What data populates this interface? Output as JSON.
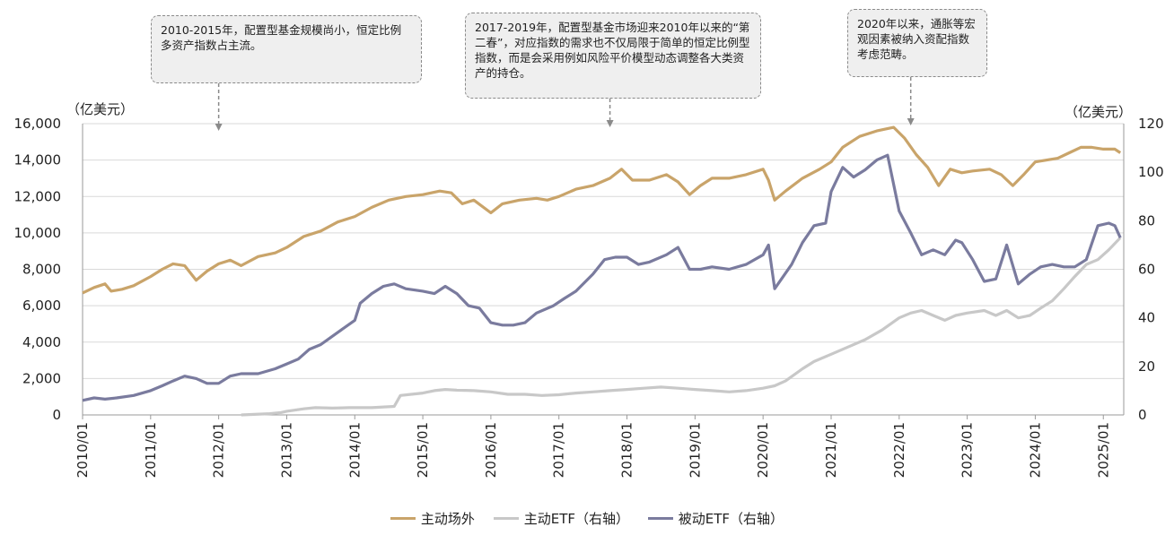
{
  "chart_data": {
    "type": "line",
    "left_axis": {
      "unit": "（亿美元）",
      "ticks": [
        "0",
        "2,000",
        "4,000",
        "6,000",
        "8,000",
        "10,000",
        "12,000",
        "14,000",
        "16,000"
      ],
      "range": [
        0,
        16000
      ]
    },
    "right_axis": {
      "unit": "（亿美元）",
      "ticks": [
        "0",
        "20",
        "40",
        "60",
        "80",
        "100",
        "120"
      ],
      "range": [
        0,
        120
      ]
    },
    "x_ticks": [
      "2010/01",
      "2011/01",
      "2012/01",
      "2013/01",
      "2014/01",
      "2015/01",
      "2016/01",
      "2017/01",
      "2018/01",
      "2019/01",
      "2020/01",
      "2021/01",
      "2022/01",
      "2023/01",
      "2024/01",
      "2025/01"
    ],
    "x_range": [
      2010.0,
      2025.3
    ],
    "grid": "horizontal",
    "legend_position": "bottom",
    "series": [
      {
        "name": "主动场外",
        "axis": "left",
        "color": "#c9a46a",
        "points": [
          [
            2010.0,
            6700
          ],
          [
            2010.17,
            7000
          ],
          [
            2010.33,
            7200
          ],
          [
            2010.42,
            6800
          ],
          [
            2010.58,
            6900
          ],
          [
            2010.75,
            7100
          ],
          [
            2011.0,
            7600
          ],
          [
            2011.17,
            8000
          ],
          [
            2011.33,
            8300
          ],
          [
            2011.5,
            8200
          ],
          [
            2011.67,
            7400
          ],
          [
            2011.83,
            7900
          ],
          [
            2012.0,
            8300
          ],
          [
            2012.17,
            8500
          ],
          [
            2012.33,
            8200
          ],
          [
            2012.58,
            8700
          ],
          [
            2012.83,
            8900
          ],
          [
            2013.0,
            9200
          ],
          [
            2013.25,
            9800
          ],
          [
            2013.5,
            10100
          ],
          [
            2013.75,
            10600
          ],
          [
            2014.0,
            10900
          ],
          [
            2014.25,
            11400
          ],
          [
            2014.5,
            11800
          ],
          [
            2014.75,
            12000
          ],
          [
            2015.0,
            12100
          ],
          [
            2015.25,
            12300
          ],
          [
            2015.42,
            12200
          ],
          [
            2015.58,
            11600
          ],
          [
            2015.75,
            11800
          ],
          [
            2016.0,
            11100
          ],
          [
            2016.17,
            11600
          ],
          [
            2016.42,
            11800
          ],
          [
            2016.67,
            11900
          ],
          [
            2016.83,
            11800
          ],
          [
            2017.0,
            12000
          ],
          [
            2017.25,
            12400
          ],
          [
            2017.5,
            12600
          ],
          [
            2017.75,
            13000
          ],
          [
            2017.92,
            13500
          ],
          [
            2018.08,
            12900
          ],
          [
            2018.33,
            12900
          ],
          [
            2018.58,
            13200
          ],
          [
            2018.75,
            12800
          ],
          [
            2018.92,
            12100
          ],
          [
            2019.08,
            12600
          ],
          [
            2019.25,
            13000
          ],
          [
            2019.5,
            13000
          ],
          [
            2019.75,
            13200
          ],
          [
            2020.0,
            13500
          ],
          [
            2020.08,
            12900
          ],
          [
            2020.17,
            11800
          ],
          [
            2020.33,
            12300
          ],
          [
            2020.58,
            13000
          ],
          [
            2020.83,
            13500
          ],
          [
            2021.0,
            13900
          ],
          [
            2021.17,
            14700
          ],
          [
            2021.42,
            15300
          ],
          [
            2021.67,
            15600
          ],
          [
            2021.92,
            15800
          ],
          [
            2022.08,
            15200
          ],
          [
            2022.25,
            14300
          ],
          [
            2022.42,
            13600
          ],
          [
            2022.58,
            12600
          ],
          [
            2022.75,
            13500
          ],
          [
            2022.92,
            13300
          ],
          [
            2023.08,
            13400
          ],
          [
            2023.33,
            13500
          ],
          [
            2023.5,
            13200
          ],
          [
            2023.67,
            12600
          ],
          [
            2023.83,
            13200
          ],
          [
            2024.0,
            13900
          ],
          [
            2024.17,
            14000
          ],
          [
            2024.33,
            14100
          ],
          [
            2024.5,
            14400
          ],
          [
            2024.67,
            14700
          ],
          [
            2024.83,
            14700
          ],
          [
            2025.0,
            14600
          ],
          [
            2025.17,
            14600
          ],
          [
            2025.25,
            14400
          ]
        ]
      },
      {
        "name": "主动ETF（右轴）",
        "axis": "right",
        "color": "#c8c8c8",
        "points": [
          [
            2012.33,
            0
          ],
          [
            2012.75,
            0.5
          ],
          [
            2012.92,
            1
          ],
          [
            2013.0,
            1.5
          ],
          [
            2013.25,
            2.5
          ],
          [
            2013.42,
            3
          ],
          [
            2013.67,
            2.8
          ],
          [
            2013.92,
            3
          ],
          [
            2014.25,
            3
          ],
          [
            2014.58,
            3.5
          ],
          [
            2014.67,
            8
          ],
          [
            2014.83,
            8.5
          ],
          [
            2015.0,
            9
          ],
          [
            2015.17,
            10
          ],
          [
            2015.33,
            10.5
          ],
          [
            2015.5,
            10.2
          ],
          [
            2015.75,
            10
          ],
          [
            2016.0,
            9.5
          ],
          [
            2016.25,
            8.5
          ],
          [
            2016.5,
            8.5
          ],
          [
            2016.75,
            8
          ],
          [
            2017.0,
            8.3
          ],
          [
            2017.25,
            9
          ],
          [
            2017.5,
            9.5
          ],
          [
            2017.75,
            10
          ],
          [
            2018.0,
            10.5
          ],
          [
            2018.25,
            11
          ],
          [
            2018.5,
            11.5
          ],
          [
            2018.75,
            11
          ],
          [
            2019.0,
            10.5
          ],
          [
            2019.25,
            10
          ],
          [
            2019.5,
            9.5
          ],
          [
            2019.75,
            10
          ],
          [
            2020.0,
            11
          ],
          [
            2020.17,
            12
          ],
          [
            2020.33,
            14
          ],
          [
            2020.58,
            19
          ],
          [
            2020.75,
            22
          ],
          [
            2021.0,
            25
          ],
          [
            2021.25,
            28
          ],
          [
            2021.5,
            31
          ],
          [
            2021.75,
            35
          ],
          [
            2022.0,
            40
          ],
          [
            2022.17,
            42
          ],
          [
            2022.33,
            43
          ],
          [
            2022.5,
            41
          ],
          [
            2022.67,
            39
          ],
          [
            2022.83,
            41
          ],
          [
            2023.0,
            42
          ],
          [
            2023.25,
            43
          ],
          [
            2023.42,
            41
          ],
          [
            2023.58,
            43
          ],
          [
            2023.75,
            40
          ],
          [
            2023.92,
            41
          ],
          [
            2024.08,
            44
          ],
          [
            2024.25,
            47
          ],
          [
            2024.42,
            52
          ],
          [
            2024.58,
            57
          ],
          [
            2024.75,
            62
          ],
          [
            2024.92,
            64
          ],
          [
            2025.08,
            68
          ],
          [
            2025.25,
            73
          ]
        ]
      },
      {
        "name": "被动ETF（右轴）",
        "axis": "right",
        "color": "#7a7b9e",
        "points": [
          [
            2010.0,
            6
          ],
          [
            2010.17,
            7
          ],
          [
            2010.33,
            6.5
          ],
          [
            2010.5,
            7
          ],
          [
            2010.75,
            8
          ],
          [
            2011.0,
            10
          ],
          [
            2011.17,
            12
          ],
          [
            2011.33,
            14
          ],
          [
            2011.5,
            16
          ],
          [
            2011.67,
            15
          ],
          [
            2011.83,
            13
          ],
          [
            2012.0,
            13
          ],
          [
            2012.17,
            16
          ],
          [
            2012.33,
            17
          ],
          [
            2012.58,
            17
          ],
          [
            2012.83,
            19
          ],
          [
            2013.0,
            21
          ],
          [
            2013.17,
            23
          ],
          [
            2013.33,
            27
          ],
          [
            2013.5,
            29
          ],
          [
            2013.75,
            34
          ],
          [
            2014.0,
            39
          ],
          [
            2014.08,
            46
          ],
          [
            2014.25,
            50
          ],
          [
            2014.42,
            53
          ],
          [
            2014.58,
            54
          ],
          [
            2014.75,
            52
          ],
          [
            2015.0,
            51
          ],
          [
            2015.17,
            50
          ],
          [
            2015.33,
            53
          ],
          [
            2015.5,
            50
          ],
          [
            2015.67,
            45
          ],
          [
            2015.83,
            44
          ],
          [
            2016.0,
            38
          ],
          [
            2016.17,
            37
          ],
          [
            2016.33,
            37
          ],
          [
            2016.5,
            38
          ],
          [
            2016.67,
            42
          ],
          [
            2016.92,
            45
          ],
          [
            2017.08,
            48
          ],
          [
            2017.25,
            51
          ],
          [
            2017.5,
            58
          ],
          [
            2017.67,
            64
          ],
          [
            2017.83,
            65
          ],
          [
            2018.0,
            65
          ],
          [
            2018.17,
            62
          ],
          [
            2018.33,
            63
          ],
          [
            2018.58,
            66
          ],
          [
            2018.75,
            69
          ],
          [
            2018.92,
            60
          ],
          [
            2019.08,
            60
          ],
          [
            2019.25,
            61
          ],
          [
            2019.5,
            60
          ],
          [
            2019.75,
            62
          ],
          [
            2020.0,
            66
          ],
          [
            2020.08,
            70
          ],
          [
            2020.17,
            52
          ],
          [
            2020.42,
            62
          ],
          [
            2020.58,
            71
          ],
          [
            2020.75,
            78
          ],
          [
            2020.92,
            79
          ],
          [
            2021.0,
            92
          ],
          [
            2021.17,
            102
          ],
          [
            2021.33,
            98
          ],
          [
            2021.5,
            101
          ],
          [
            2021.67,
            105
          ],
          [
            2021.83,
            107
          ],
          [
            2022.0,
            84
          ],
          [
            2022.17,
            75
          ],
          [
            2022.33,
            66
          ],
          [
            2022.5,
            68
          ],
          [
            2022.67,
            66
          ],
          [
            2022.83,
            72
          ],
          [
            2022.92,
            71
          ],
          [
            2023.08,
            64
          ],
          [
            2023.25,
            55
          ],
          [
            2023.42,
            56
          ],
          [
            2023.58,
            70
          ],
          [
            2023.75,
            54
          ],
          [
            2023.92,
            58
          ],
          [
            2024.08,
            61
          ],
          [
            2024.25,
            62
          ],
          [
            2024.42,
            61
          ],
          [
            2024.58,
            61
          ],
          [
            2024.75,
            64
          ],
          [
            2024.92,
            78
          ],
          [
            2025.08,
            79
          ],
          [
            2025.17,
            78
          ],
          [
            2025.25,
            73
          ]
        ]
      }
    ],
    "annotations": [
      {
        "text": "2010-2015年，配置型基金规模尚小，恒定比例多资产指数占主流。",
        "x": 2012.0
      },
      {
        "text": "2017-2019年，配置型基金市场迎来2010年以来的“第二春”，对应指数的需求也不仅局限于简单的恒定比例型指数，而是会采用例如风险平价模型动态调整各大类资产的持仓。",
        "x": 2017.75
      },
      {
        "text": "2020年以来，通胀等宏观因素被纳入资配指数考虑范畴。",
        "x": 2022.17
      }
    ]
  }
}
